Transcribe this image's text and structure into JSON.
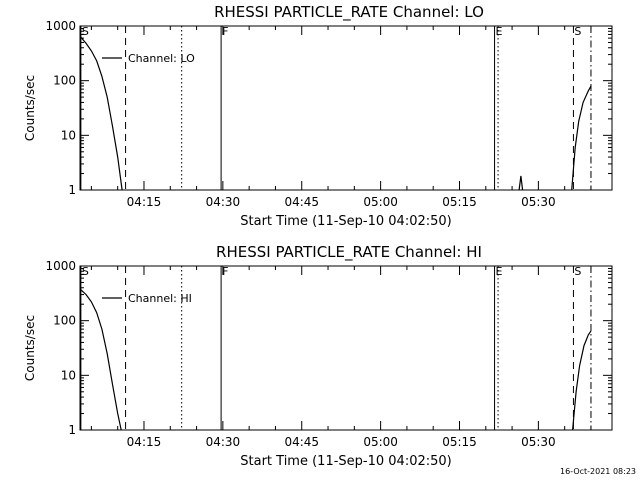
{
  "footer": "16-Oct-2021 08:23",
  "chart_data": [
    {
      "type": "line",
      "title": "RHESSI PARTICLE_RATE Channel: LO",
      "xlabel": "Start Time (11-Sep-10 04:02:50)",
      "ylabel": "Counts/sec",
      "y_scale": "log",
      "ylim": [
        1,
        1000
      ],
      "xlim": [
        "04:02:50",
        "05:44:00"
      ],
      "x_tick_labels": [
        "04:15",
        "04:30",
        "04:45",
        "05:00",
        "05:15",
        "05:30"
      ],
      "y_tick_labels": [
        "1",
        "10",
        "100",
        "1000"
      ],
      "legend": [
        "Channel: LO"
      ],
      "legend_position": "top-left",
      "markers": [
        {
          "label": "S",
          "time": "04:03:00",
          "style": "solid"
        },
        {
          "label": "",
          "time": "04:11:30",
          "style": "dashed"
        },
        {
          "label": "",
          "time": "04:22:10",
          "style": "dotted"
        },
        {
          "label": "F",
          "time": "04:29:40",
          "style": "solid"
        },
        {
          "label": "E",
          "time": "05:21:40",
          "style": "solid"
        },
        {
          "label": "",
          "time": "05:22:20",
          "style": "dotted"
        },
        {
          "label": "S",
          "time": "05:36:40",
          "style": "dashed"
        },
        {
          "label": "",
          "time": "05:40:00",
          "style": "dashdot"
        }
      ],
      "series": [
        {
          "segments": [
            [
              [
                "04:02:50",
                650
              ],
              [
                "04:04:00",
                480
              ],
              [
                "04:05:00",
                350
              ],
              [
                "04:06:00",
                230
              ],
              [
                "04:07:00",
                120
              ],
              [
                "04:08:00",
                50
              ],
              [
                "04:09:00",
                15
              ],
              [
                "04:10:00",
                4
              ],
              [
                "04:10:50",
                1
              ]
            ],
            [
              [
                "05:26:20",
                1
              ],
              [
                "05:26:40",
                1.8
              ],
              [
                "05:27:00",
                1
              ]
            ],
            [
              [
                "05:36:20",
                1
              ],
              [
                "05:37:00",
                6
              ],
              [
                "05:37:40",
                18
              ],
              [
                "05:38:30",
                40
              ],
              [
                "05:39:30",
                65
              ],
              [
                "05:40:00",
                80
              ]
            ]
          ]
        }
      ]
    },
    {
      "type": "line",
      "title": "RHESSI PARTICLE_RATE Channel: HI",
      "xlabel": "Start Time (11-Sep-10 04:02:50)",
      "ylabel": "Counts/sec",
      "y_scale": "log",
      "ylim": [
        1,
        1000
      ],
      "xlim": [
        "04:02:50",
        "05:44:00"
      ],
      "x_tick_labels": [
        "04:15",
        "04:30",
        "04:45",
        "05:00",
        "05:15",
        "05:30"
      ],
      "y_tick_labels": [
        "1",
        "10",
        "100",
        "1000"
      ],
      "legend": [
        "Channel: HI"
      ],
      "legend_position": "top-left",
      "markers": [
        {
          "label": "S",
          "time": "04:03:00",
          "style": "solid"
        },
        {
          "label": "",
          "time": "04:11:30",
          "style": "dashed"
        },
        {
          "label": "",
          "time": "04:22:10",
          "style": "dotted"
        },
        {
          "label": "F",
          "time": "04:29:40",
          "style": "solid"
        },
        {
          "label": "E",
          "time": "05:21:40",
          "style": "solid"
        },
        {
          "label": "",
          "time": "05:22:20",
          "style": "dotted"
        },
        {
          "label": "S",
          "time": "05:36:40",
          "style": "dashed"
        },
        {
          "label": "",
          "time": "05:40:00",
          "style": "dashdot"
        }
      ],
      "series": [
        {
          "segments": [
            [
              [
                "04:02:50",
                380
              ],
              [
                "04:04:00",
                300
              ],
              [
                "04:05:00",
                220
              ],
              [
                "04:06:00",
                140
              ],
              [
                "04:07:00",
                70
              ],
              [
                "04:08:00",
                25
              ],
              [
                "04:09:00",
                7
              ],
              [
                "04:10:00",
                2
              ],
              [
                "04:10:40",
                1
              ]
            ],
            [
              [
                "05:36:30",
                1
              ],
              [
                "05:37:10",
                5
              ],
              [
                "05:37:50",
                15
              ],
              [
                "05:38:40",
                35
              ],
              [
                "05:39:30",
                55
              ],
              [
                "05:40:00",
                65
              ]
            ]
          ]
        }
      ]
    }
  ]
}
